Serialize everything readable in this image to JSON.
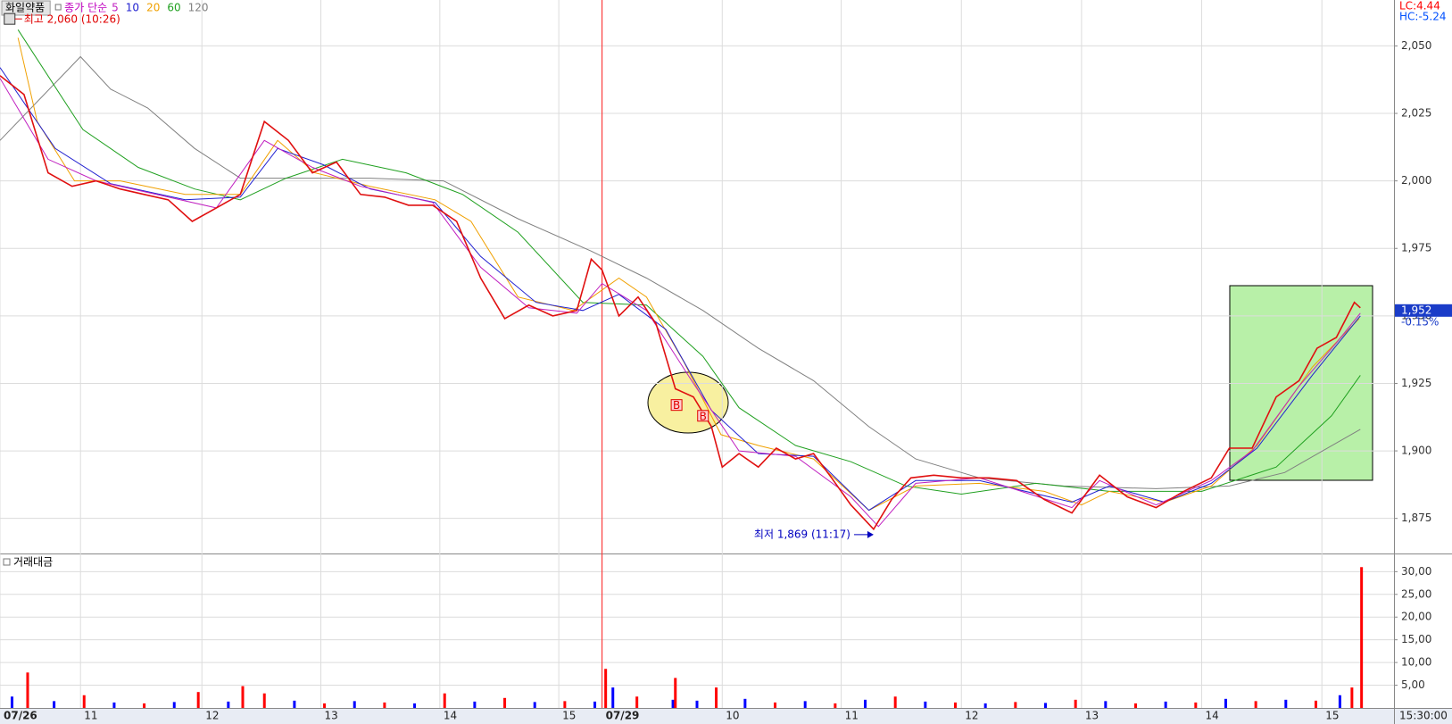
{
  "chart_data": [
    {
      "type": "line",
      "title": "화일약품",
      "legend_title": "종가 단순",
      "corner_labels": [
        {
          "text": "LC:4.44",
          "color": "#ff0000"
        },
        {
          "text": "HC:-5.24",
          "color": "#0050ff"
        }
      ],
      "xlim": [
        0,
        11.6
      ],
      "ylim": [
        1862,
        2067
      ],
      "xticks": [
        {
          "value": 0,
          "label": "07/26"
        },
        {
          "value": 0.67,
          "label": "11"
        },
        {
          "value": 1.68,
          "label": "12"
        },
        {
          "value": 2.67,
          "label": "13"
        },
        {
          "value": 3.66,
          "label": "14"
        },
        {
          "value": 4.65,
          "label": "15"
        },
        {
          "value": 5.01,
          "label": "07/29"
        },
        {
          "value": 6.01,
          "label": "10"
        },
        {
          "value": 7.0,
          "label": "11"
        },
        {
          "value": 8.0,
          "label": "12"
        },
        {
          "value": 9.0,
          "label": "13"
        },
        {
          "value": 10.0,
          "label": "14"
        },
        {
          "value": 11.0,
          "label": "15"
        }
      ],
      "end_time_label": "15:30:00",
      "yticks": [
        {
          "value": 1875,
          "label": "1,875"
        },
        {
          "value": 1900,
          "label": "1,900"
        },
        {
          "value": 1925,
          "label": "1,925"
        },
        {
          "value": 1950,
          "label": "1,950"
        },
        {
          "value": 1975,
          "label": "1,975"
        },
        {
          "value": 2000,
          "label": "2,000"
        },
        {
          "value": 2025,
          "label": "2,025"
        },
        {
          "value": 2050,
          "label": "2,050"
        }
      ],
      "grid": true,
      "price": {
        "color": "#e01010",
        "x": [
          0,
          0.2,
          0.4,
          0.6,
          0.8,
          1.0,
          1.2,
          1.4,
          1.6,
          1.8,
          2.0,
          2.2,
          2.4,
          2.6,
          2.8,
          3.0,
          3.2,
          3.4,
          3.6,
          3.8,
          4.0,
          4.2,
          4.4,
          4.6,
          4.8,
          4.92,
          5.01,
          5.15,
          5.31,
          5.46,
          5.62,
          5.77,
          5.92,
          6.01,
          6.15,
          6.31,
          6.46,
          6.62,
          6.77,
          6.92,
          7.08,
          7.27,
          7.42,
          7.58,
          7.77,
          8.0,
          8.23,
          8.46,
          8.69,
          8.92,
          9.15,
          9.38,
          9.62,
          9.85,
          10.08,
          10.23,
          10.42,
          10.62,
          10.81,
          10.96,
          11.12,
          11.27,
          11.32
        ],
        "values": [
          2039,
          2032,
          2003,
          1998,
          2000,
          1997,
          1995,
          1993,
          1985,
          1990,
          1995,
          2022,
          2015,
          2003,
          2007,
          1995,
          1994,
          1991,
          1991,
          1985,
          1964,
          1949,
          1954,
          1950,
          1952,
          1971,
          1967,
          1950,
          1957,
          1947,
          1923,
          1920,
          1909,
          1894,
          1899,
          1894,
          1901,
          1897,
          1899,
          1890,
          1880,
          1871,
          1882,
          1890,
          1891,
          1890,
          1890,
          1889,
          1882,
          1877,
          1891,
          1883,
          1879,
          1885,
          1890,
          1901,
          1901,
          1920,
          1926,
          1938,
          1942,
          1955,
          1953
        ]
      },
      "series": [
        {
          "name": "5",
          "color": "#c020c0",
          "x": [
            0,
            0.4,
            0.8,
            1.4,
            1.8,
            2.2,
            2.6,
            3.0,
            3.6,
            4.0,
            4.4,
            4.8,
            5.01,
            5.38,
            5.77,
            6.15,
            6.62,
            7.08,
            7.31,
            7.62,
            8.15,
            8.92,
            9.15,
            9.62,
            10.08,
            10.42,
            10.81,
            11.12,
            11.32
          ],
          "values": [
            2038,
            2008,
            2000,
            1994,
            1990,
            2015,
            2005,
            1998,
            1992,
            1968,
            1953,
            1951,
            1962,
            1952,
            1925,
            1900,
            1898,
            1883,
            1872,
            1888,
            1890,
            1879,
            1889,
            1880,
            1889,
            1900,
            1924,
            1940,
            1951
          ]
        },
        {
          "name": "10",
          "color": "#2020d0",
          "x": [
            0,
            0.46,
            0.92,
            1.54,
            2.0,
            2.31,
            2.69,
            3.08,
            3.62,
            4.0,
            4.46,
            4.85,
            5.15,
            5.54,
            5.92,
            6.31,
            6.77,
            7.23,
            7.62,
            8.15,
            8.92,
            9.23,
            9.69,
            10.08,
            10.46,
            10.92,
            11.32
          ],
          "values": [
            2042,
            2012,
            1999,
            1993,
            1994,
            2012,
            2006,
            1997,
            1992,
            1972,
            1955,
            1952,
            1958,
            1945,
            1915,
            1899,
            1898,
            1878,
            1889,
            1889,
            1881,
            1887,
            1881,
            1888,
            1901,
            1928,
            1950
          ]
        },
        {
          "name": "20",
          "color": "#f0a000",
          "x": [
            0.15,
            0.31,
            0.62,
            1.0,
            1.54,
            2.0,
            2.31,
            2.62,
            3.08,
            3.62,
            3.92,
            4.31,
            4.77,
            5.15,
            5.38,
            5.69,
            6.0,
            6.31,
            6.77,
            7.23,
            7.62,
            8.15,
            8.69,
            9.0,
            9.23,
            9.69,
            10.08,
            10.46,
            10.92,
            11.31
          ],
          "values": [
            2053,
            2022,
            2000,
            2000,
            1995,
            1995,
            2015,
            2003,
            1998,
            1993,
            1985,
            1957,
            1952,
            1964,
            1957,
            1933,
            1906,
            1902,
            1897,
            1878,
            1887,
            1888,
            1885,
            1880,
            1885,
            1881,
            1887,
            1902,
            1931,
            1949
          ]
        },
        {
          "name": "60",
          "color": "#20a020",
          "x": [
            0.15,
            0.69,
            1.15,
            1.62,
            2.0,
            2.38,
            2.85,
            3.38,
            3.85,
            4.31,
            4.85,
            5.38,
            5.85,
            6.15,
            6.62,
            7.08,
            7.54,
            8.0,
            8.62,
            9.23,
            10.0,
            10.62,
            11.08,
            11.32
          ],
          "values": [
            2056,
            2019,
            2005,
            1997,
            1993,
            2001,
            2008,
            2003,
            1995,
            1981,
            1955,
            1954,
            1935,
            1916,
            1902,
            1896,
            1887,
            1884,
            1888,
            1885,
            1885,
            1894,
            1913,
            1928
          ]
        },
        {
          "name": "120",
          "color": "#808080",
          "x": [
            0,
            0.67,
            0.92,
            1.23,
            1.62,
            2.0,
            2.54,
            3.08,
            3.69,
            4.31,
            4.92,
            5.38,
            5.85,
            6.31,
            6.77,
            7.23,
            7.62,
            8.15,
            8.85,
            9.62,
            10.23,
            10.69,
            11.32
          ],
          "values": [
            2015,
            2046,
            2034,
            2027,
            2012,
            2001,
            2001,
            2001,
            2000,
            1986,
            1974,
            1964,
            1952,
            1938,
            1926,
            1909,
            1897,
            1890,
            1887,
            1886,
            1887,
            1892,
            1908
          ]
        }
      ],
      "annotations": [
        {
          "text": "최고 2,060 (10:26)",
          "x": 0.08,
          "y": 2060,
          "color": "#e00000"
        },
        {
          "text": "최저 1,869 (11:17)",
          "x": 7.27,
          "y": 1869,
          "color": "#0000c0"
        }
      ],
      "signals": [
        {
          "label": "B",
          "x": 5.63,
          "y": 1917
        },
        {
          "label": "B",
          "x": 5.85,
          "y": 1913
        }
      ],
      "last_price": {
        "value": 1952,
        "label": "1,952",
        "change": "-0.15%"
      }
    },
    {
      "type": "bar",
      "title": "거래대금",
      "xlim": [
        0,
        11.6
      ],
      "ylim": [
        0,
        34
      ],
      "yticks": [
        {
          "value": 5,
          "label": "5,00"
        },
        {
          "value": 10,
          "label": "10,00"
        },
        {
          "value": 15,
          "label": "15,00"
        },
        {
          "value": 20,
          "label": "20,00"
        },
        {
          "value": 25,
          "label": "25,00"
        },
        {
          "value": 30,
          "label": "30,00"
        }
      ],
      "grid": true,
      "x": [
        0.1,
        0.23,
        0.45,
        0.7,
        0.95,
        1.2,
        1.45,
        1.65,
        1.9,
        2.02,
        2.2,
        2.45,
        2.7,
        2.95,
        3.2,
        3.45,
        3.7,
        3.95,
        4.2,
        4.45,
        4.7,
        4.95,
        5.04,
        5.1,
        5.3,
        5.6,
        5.62,
        5.8,
        5.96,
        6.2,
        6.45,
        6.7,
        6.95,
        7.2,
        7.45,
        7.7,
        7.95,
        8.2,
        8.45,
        8.7,
        8.95,
        9.2,
        9.45,
        9.7,
        9.95,
        10.2,
        10.45,
        10.7,
        10.95,
        11.15,
        11.25,
        11.33
      ],
      "values": [
        2.5,
        7.8,
        1.5,
        2.8,
        1.2,
        1.0,
        1.3,
        3.5,
        1.4,
        4.8,
        3.2,
        1.6,
        1.0,
        1.5,
        1.2,
        1.0,
        3.2,
        1.4,
        2.2,
        1.3,
        1.5,
        1.4,
        8.6,
        4.5,
        2.5,
        1.8,
        6.6,
        1.6,
        4.5,
        2.0,
        1.2,
        1.5,
        1.0,
        1.8,
        2.5,
        1.4,
        1.2,
        1.0,
        1.3,
        1.1,
        1.8,
        1.5,
        1.0,
        1.4,
        1.2,
        2.0,
        1.5,
        1.8,
        1.6,
        2.8,
        4.5,
        31
      ],
      "colors": [
        "#0000ff",
        "#ff0000",
        "#0000ff",
        "#ff0000",
        "#0000ff",
        "#ff0000",
        "#0000ff",
        "#ff0000",
        "#0000ff",
        "#ff0000",
        "#ff0000",
        "#0000ff",
        "#ff0000",
        "#0000ff",
        "#ff0000",
        "#0000ff",
        "#ff0000",
        "#0000ff",
        "#ff0000",
        "#0000ff",
        "#ff0000",
        "#0000ff",
        "#ff0000",
        "#0000ff",
        "#ff0000",
        "#0000ff",
        "#ff0000",
        "#0000ff",
        "#ff0000",
        "#0000ff",
        "#ff0000",
        "#0000ff",
        "#ff0000",
        "#0000ff",
        "#ff0000",
        "#0000ff",
        "#ff0000",
        "#0000ff",
        "#ff0000",
        "#0000ff",
        "#ff0000",
        "#0000ff",
        "#ff0000",
        "#0000ff",
        "#ff0000",
        "#0000ff",
        "#ff0000",
        "#0000ff",
        "#ff0000",
        "#0000ff",
        "#ff0000",
        "#ff0000"
      ]
    }
  ]
}
